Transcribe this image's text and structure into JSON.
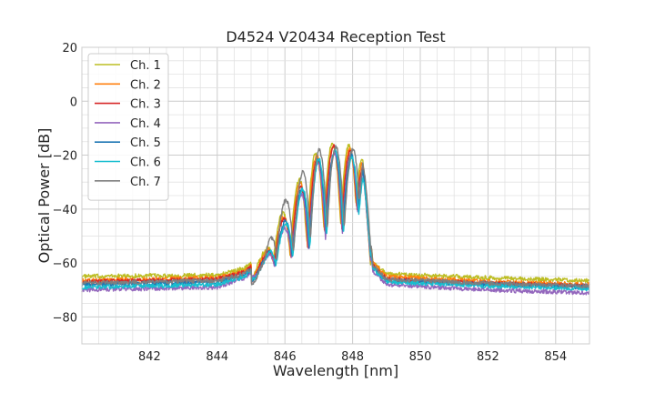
{
  "chart_data": {
    "type": "line",
    "title": "D4524 V20434 Reception Test",
    "xlabel": "Wavelength [nm]",
    "ylabel": "Optical Power [dB]",
    "xlim": [
      840.0,
      855.0
    ],
    "ylim": [
      -90,
      20
    ],
    "x_ticks": [
      842,
      844,
      846,
      848,
      850,
      852,
      854
    ],
    "x_tick_labels": [
      "842",
      "844",
      "846",
      "848",
      "850",
      "852",
      "854"
    ],
    "y_ticks": [
      20,
      0,
      -20,
      -40,
      -60,
      -80
    ],
    "y_tick_labels": [
      "20",
      "0",
      "−20",
      "−40",
      "−60",
      "−80"
    ],
    "grid": true,
    "legend_position": "upper-left",
    "series": [
      {
        "name": "Ch. 1",
        "color": "#bcbd22",
        "x": [
          840.0,
          844.0,
          844.8,
          845.4,
          845.8,
          846.2,
          846.6,
          847.0,
          847.5,
          848.0,
          848.3,
          848.6,
          849.0,
          852.0,
          855.0
        ],
        "y": [
          -65,
          -64.5,
          -62,
          -56,
          -44,
          -35,
          -24,
          -18,
          -15,
          -17,
          -22,
          -60,
          -64,
          -65.5,
          -66.5
        ]
      },
      {
        "name": "Ch. 2",
        "color": "#ff7f0e",
        "x": [
          840.0,
          844.0,
          844.8,
          845.4,
          845.8,
          846.2,
          846.6,
          847.0,
          847.5,
          848.0,
          848.3,
          848.6,
          849.0,
          852.0,
          855.0
        ],
        "y": [
          -66.5,
          -65.5,
          -63,
          -57,
          -46,
          -37,
          -26,
          -19,
          -16,
          -18,
          -23,
          -60,
          -65,
          -67,
          -68
        ]
      },
      {
        "name": "Ch. 3",
        "color": "#d62728",
        "x": [
          840.0,
          844.0,
          844.8,
          845.4,
          845.8,
          846.2,
          846.6,
          847.0,
          847.5,
          848.0,
          848.3,
          848.6,
          849.0,
          852.0,
          855.0
        ],
        "y": [
          -67,
          -66,
          -63.5,
          -57.5,
          -47,
          -38,
          -28,
          -20,
          -16,
          -19,
          -24,
          -61,
          -66,
          -67.5,
          -68.5
        ]
      },
      {
        "name": "Ch. 4",
        "color": "#9467bd",
        "x": [
          840.0,
          844.0,
          844.8,
          845.4,
          845.8,
          846.2,
          846.6,
          847.0,
          847.5,
          848.0,
          848.3,
          848.6,
          849.0,
          852.0,
          855.0
        ],
        "y": [
          -70,
          -69,
          -65.5,
          -59,
          -51,
          -42,
          -31,
          -22,
          -19,
          -20,
          -25,
          -63,
          -68,
          -70,
          -71
        ]
      },
      {
        "name": "Ch. 5",
        "color": "#1f77b4",
        "x": [
          840.0,
          844.0,
          844.8,
          845.4,
          845.8,
          846.2,
          846.6,
          847.0,
          847.5,
          848.0,
          848.3,
          848.6,
          849.0,
          852.0,
          855.0
        ],
        "y": [
          -68,
          -67,
          -64.5,
          -58.5,
          -49,
          -40,
          -30,
          -21,
          -18,
          -20,
          -24,
          -62,
          -66.5,
          -68,
          -69
        ]
      },
      {
        "name": "Ch. 6",
        "color": "#17becf",
        "x": [
          840.0,
          844.0,
          844.8,
          845.4,
          845.8,
          846.2,
          846.6,
          847.0,
          847.5,
          848.0,
          848.3,
          848.6,
          849.0,
          852.0,
          855.0
        ],
        "y": [
          -69,
          -68,
          -65,
          -59,
          -50,
          -41,
          -30,
          -21,
          -18,
          -21,
          -25,
          -62,
          -67,
          -68.5,
          -69.5
        ]
      },
      {
        "name": "Ch. 7",
        "color": "#7f7f7f",
        "x": [
          840.0,
          844.0,
          844.8,
          845.4,
          845.8,
          846.2,
          846.6,
          847.0,
          847.5,
          848.0,
          848.3,
          848.6,
          849.0,
          852.0,
          855.0
        ],
        "y": [
          -67.5,
          -66.5,
          -64,
          -58,
          -40,
          -34,
          -24,
          -18,
          -17,
          -18,
          -18,
          -61,
          -66,
          -67.5,
          -68.5
        ]
      }
    ]
  }
}
